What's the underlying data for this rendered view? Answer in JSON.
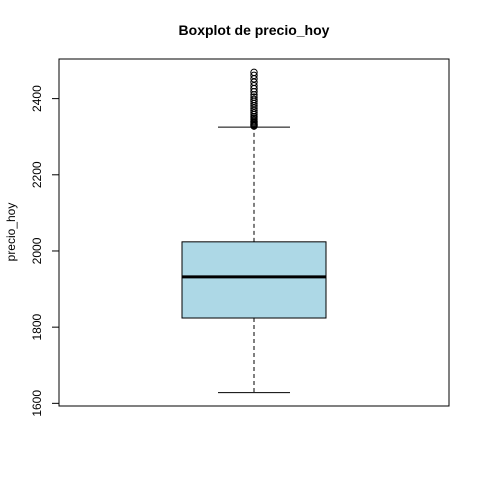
{
  "chart_data": {
    "type": "boxplot",
    "title": "Boxplot de precio_hoy",
    "xlabel": "",
    "ylabel": "precio_hoy",
    "ylim": [
      1593,
      2504
    ],
    "yticks": [
      1600,
      1800,
      2000,
      2200,
      2400
    ],
    "grid": false,
    "legend": "none",
    "box": {
      "min": 1628,
      "q1": 1824,
      "median": 1932,
      "q3": 2024,
      "max": 2325,
      "fill_color": "#add8e6",
      "outliers": [
        2328,
        2330,
        2332,
        2335,
        2338,
        2341,
        2345,
        2349,
        2353,
        2358,
        2363,
        2369,
        2375,
        2381,
        2387,
        2393,
        2398,
        2404,
        2410,
        2418,
        2426,
        2434,
        2443,
        2452,
        2461,
        2469
      ]
    }
  }
}
